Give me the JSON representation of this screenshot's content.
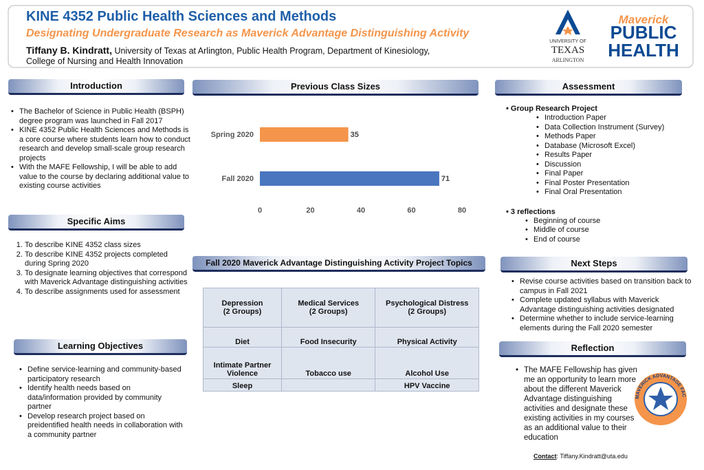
{
  "header": {
    "title": "KINE 4352 Public Health Sciences and Methods",
    "subtitle": "Designating Undergraduate Research as Maverick Advantage Distinguishing Activity",
    "author": "Tiffany B. Kindratt,",
    "affiliation": "University of Texas at Arlington, Public Health Program, Department of Kinesiology,",
    "affiliation_2": "College of Nursing and Health Innovation"
  },
  "logos": {
    "uta": [
      "UNIVERSITY OF",
      "TEXAS",
      "ARLINGTON"
    ],
    "mph": [
      "Maverick",
      "PUBLIC",
      "HEALTH"
    ],
    "badge": "MAVERICK ADVANTAGE FACULTY ENGAGEMENT"
  },
  "introduction": {
    "heading": "Introduction",
    "items": [
      "The Bachelor of Science in Public Health (BSPH) degree program was launched in Fall 2017",
      "KINE 4352 Public Health Sciences and Methods is a core course where students learn how to conduct research and develop small-scale group research projects",
      "With the MAFE Fellowship, I will be able to add value to the course by declaring additional value to existing course activities"
    ]
  },
  "specific_aims": {
    "heading": "Specific Aims",
    "items": [
      "To describe KINE 4352 class sizes",
      "To describe KINE 4352 projects completed during Spring 2020",
      "To designate learning objectives that correspond with Maverick Advantage distinguishing activities",
      "To describe assignments used for assessment"
    ]
  },
  "learning_objectives": {
    "heading": "Learning Objectives",
    "items": [
      "Define service-learning and community-based participatory research",
      "Identify health needs based on data/information provided by community partner",
      "Develop research project based on preidentified health needs in collaboration with a community partner"
    ]
  },
  "chart_data": {
    "type": "bar",
    "orientation": "horizontal",
    "title": "Previous Class Sizes",
    "categories": [
      "Spring 2020",
      "Fall 2020"
    ],
    "values": [
      35,
      71
    ],
    "colors": [
      "#f4954b",
      "#4a76bf"
    ],
    "xlim": [
      0,
      80
    ],
    "xticks": [
      0,
      20,
      40,
      60,
      80
    ]
  },
  "topics": {
    "heading": "Fall 2020 Maverick Advantage Distinguishing Activity Project Topics",
    "rows": [
      [
        [
          "Depression",
          "(2 Groups)"
        ],
        [
          "Medical Services",
          "(2 Groups)"
        ],
        [
          "Psychological Distress",
          "(2 Groups)"
        ]
      ],
      [
        [
          "Diet"
        ],
        [
          "Food Insecurity"
        ],
        [
          "Physical Activity"
        ]
      ],
      [
        [
          "Intimate Partner",
          "Violence"
        ],
        [
          "Tobacco use"
        ],
        [
          "Alcohol Use"
        ]
      ],
      [
        [
          "Sleep"
        ],
        null,
        [
          "HPV Vaccine"
        ]
      ]
    ]
  },
  "assessment": {
    "heading": "Assessment",
    "groups": [
      {
        "label": "Group Research Project",
        "items": [
          "Introduction Paper",
          "Data Collection Instrument (Survey)",
          "Methods Paper",
          "Database (Microsoft Excel)",
          "Results Paper",
          "Discussion",
          "Final Paper",
          "Final Poster Presentation",
          "Final Oral Presentation"
        ]
      },
      {
        "label": "3 reflections",
        "items": [
          "Beginning of course",
          "Middle of course",
          "End of course"
        ]
      }
    ]
  },
  "next_steps": {
    "heading": "Next Steps",
    "items": [
      "Revise course activities based on transition back to campus in Fall 2021",
      "Complete updated syllabus with Maverick Advantage distinguishing activities designated",
      "Determine whether to include service-learning elements during the Fall 2020 semester"
    ]
  },
  "reflection": {
    "heading": "Reflection",
    "items": [
      "The MAFE Fellowship has given me an opportunity to learn more about the different Maverick Advantage distinguishing activities and designate these existing activities in my courses as an additional value to their education"
    ]
  },
  "contact": {
    "label": "Contact",
    "text": ": Tiffany.Kindratt@uta.edu"
  }
}
